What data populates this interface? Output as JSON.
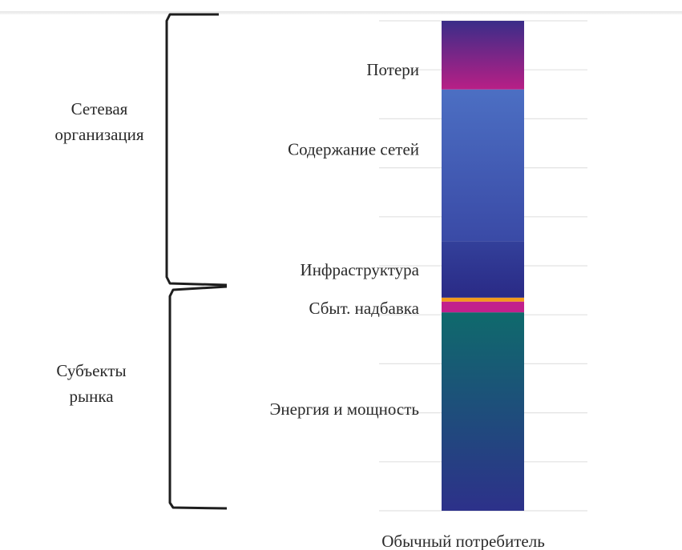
{
  "chart_data": {
    "type": "bar",
    "stacked": true,
    "categories": [
      "Обычный потребитель"
    ],
    "segments": [
      {
        "label": "Энергия и мощность",
        "share": 0.405,
        "colors": [
          "#2d318a",
          "#0f6a6c"
        ]
      },
      {
        "label": "Сбыт. надбавка",
        "share": 0.022,
        "colors": [
          "#c2208c"
        ]
      },
      {
        "label": "",
        "share": 0.008,
        "colors": [
          "#f29a1c"
        ]
      },
      {
        "label": "Инфраструктура",
        "share": 0.115,
        "colors": [
          "#2a2a86",
          "#33409a"
        ]
      },
      {
        "label": "Содержание сетей",
        "share": 0.31,
        "colors": [
          "#3a4aa6",
          "#4c6fc3"
        ]
      },
      {
        "label": "Потери",
        "share": 0.14,
        "colors": [
          "#b81f86",
          "#3a2d88"
        ]
      }
    ],
    "groups": [
      {
        "lines": [
          "Сетевая",
          "организация"
        ]
      },
      {
        "lines": [
          "Субъекты",
          "рынка"
        ]
      }
    ],
    "grid": true
  }
}
